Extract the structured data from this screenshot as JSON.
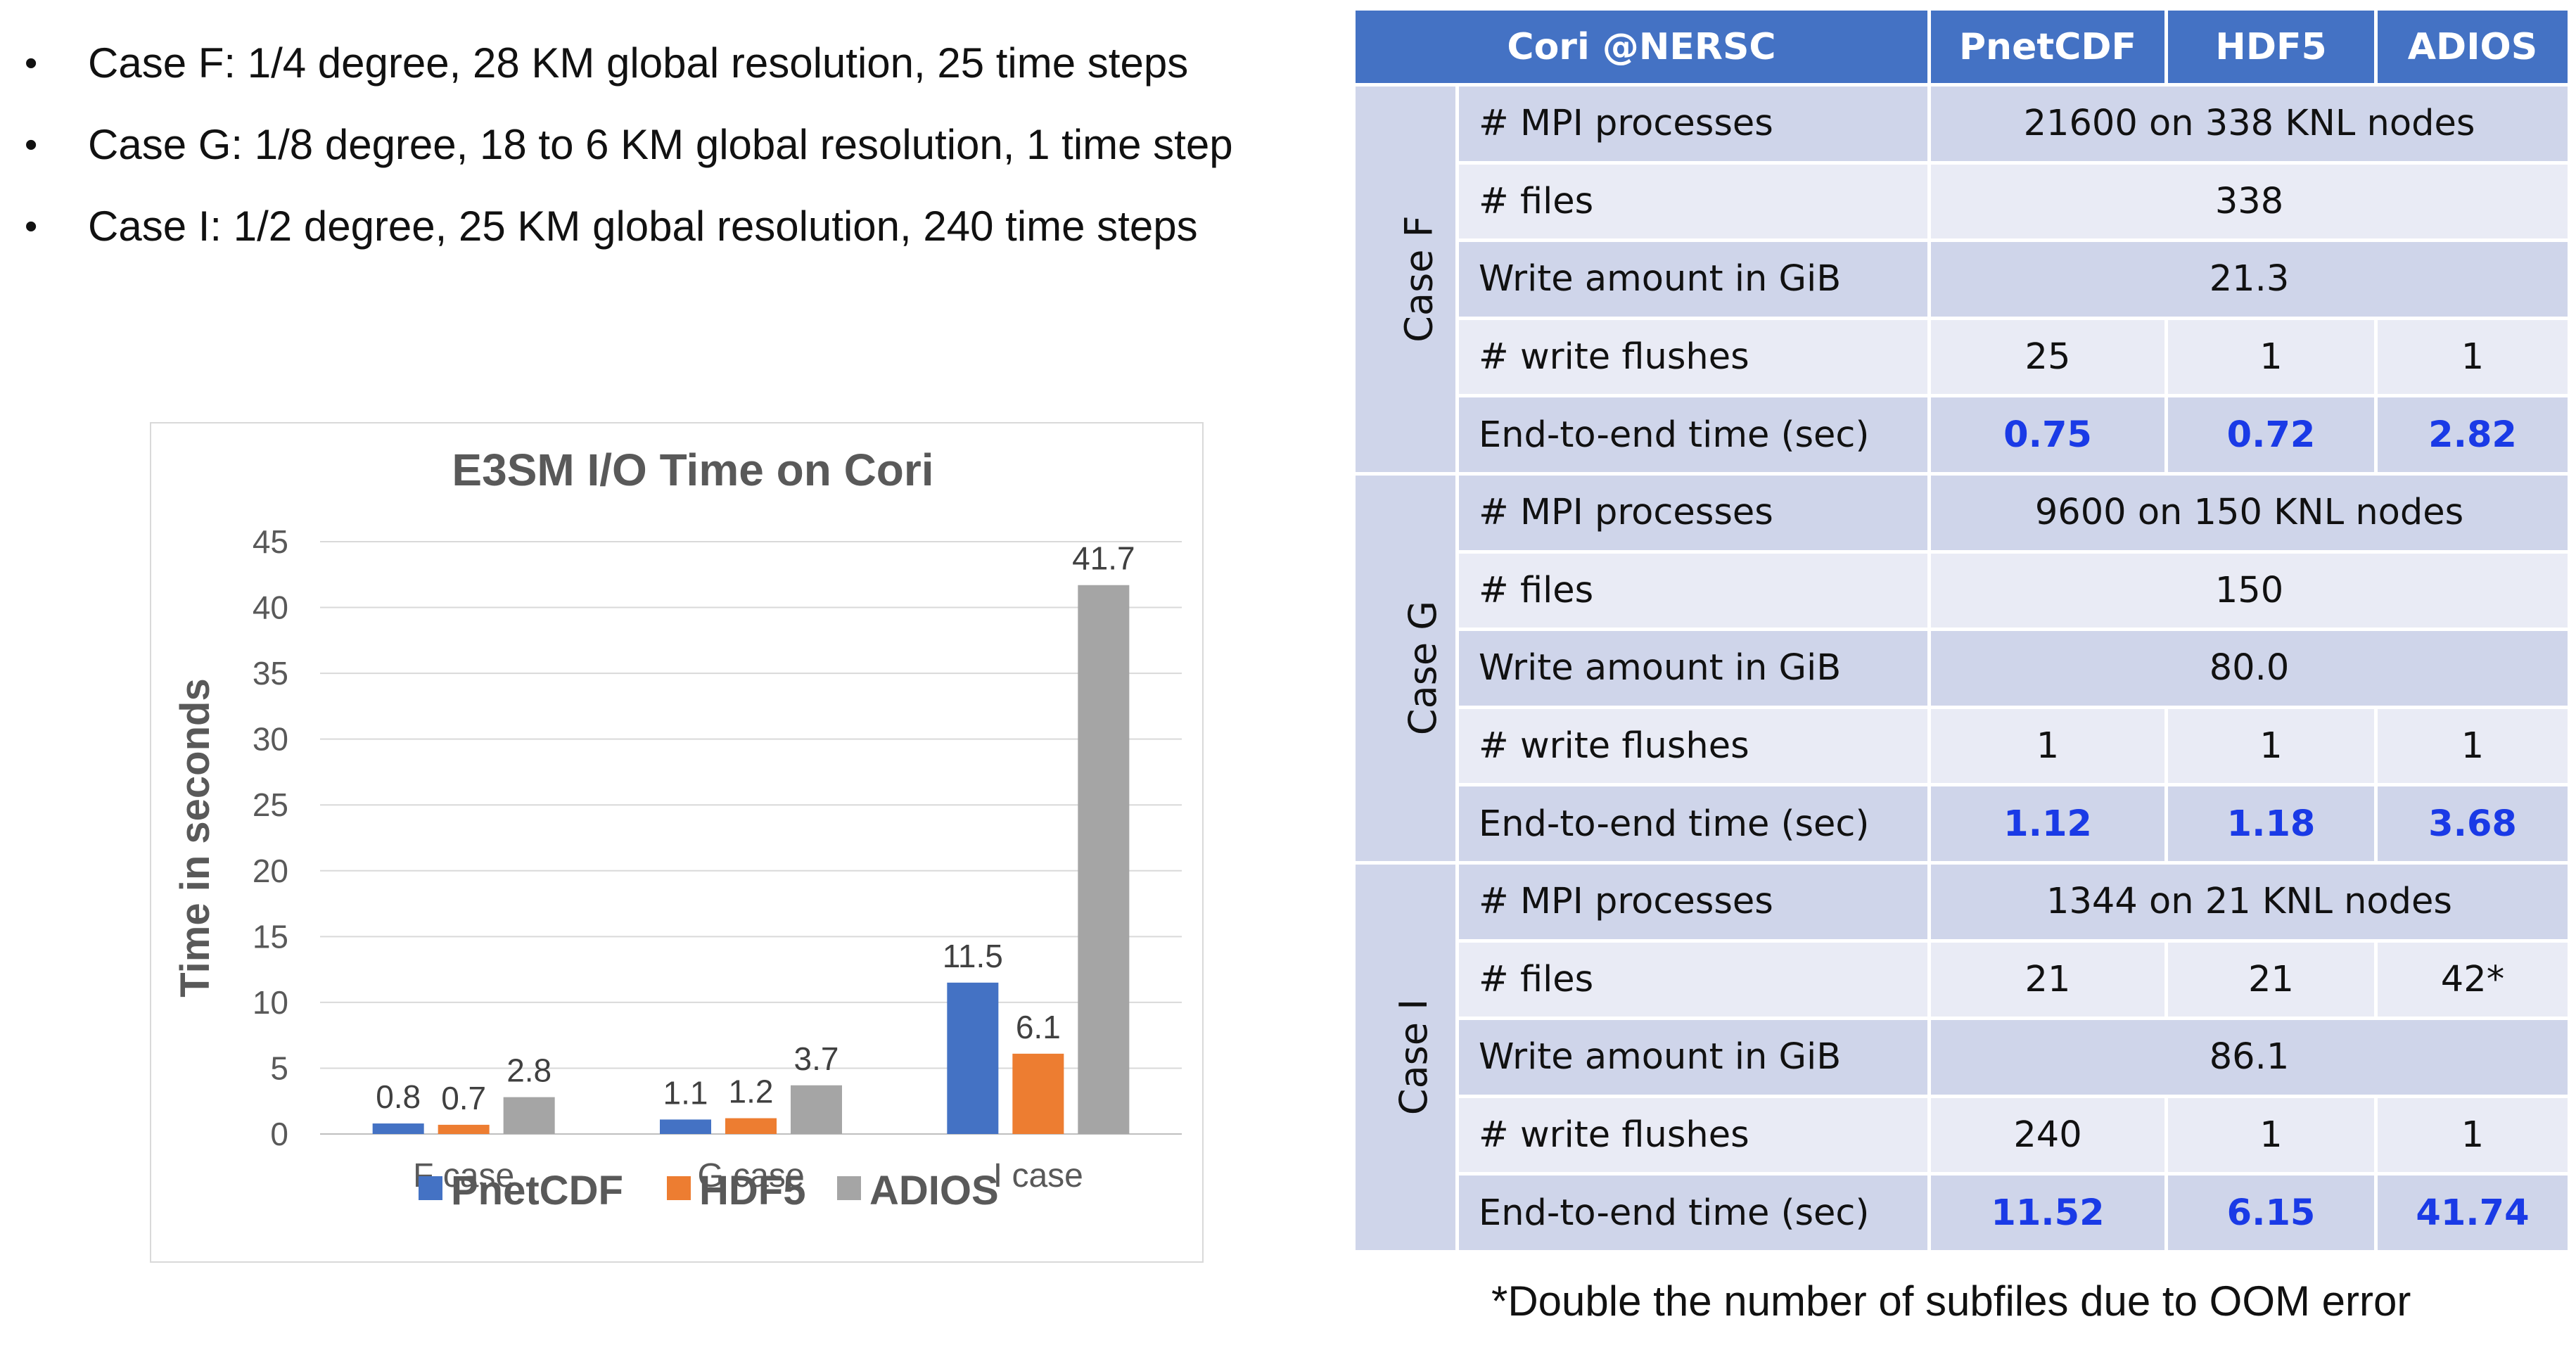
{
  "bullets": [
    "Case F: 1/4 degree, 28 KM global resolution, 25 time steps",
    "Case G:  1/8 degree, 18 to 6 KM global resolution, 1 time step",
    "Case I: 1/2 degree, 25 KM global resolution, 240 time steps"
  ],
  "chart_data": {
    "type": "bar",
    "title": "E3SM I/O  Time on Cori",
    "xlabel": "",
    "ylabel": "Time in seconds",
    "categories": [
      "F case",
      "G case",
      "I case"
    ],
    "ylim": [
      0,
      45
    ],
    "yticks": [
      0,
      5,
      10,
      15,
      20,
      25,
      30,
      35,
      40,
      45
    ],
    "grid": true,
    "legend_position": "bottom",
    "series": [
      {
        "name": "PnetCDF",
        "color": "#4472C4",
        "values": [
          0.8,
          1.1,
          11.5
        ],
        "labels": [
          "0.8",
          "1.1",
          "11.5"
        ]
      },
      {
        "name": "HDF5",
        "color": "#ED7D31",
        "values": [
          0.7,
          1.2,
          6.1
        ],
        "labels": [
          "0.7",
          "1.2",
          "6.1"
        ]
      },
      {
        "name": "ADIOS",
        "color": "#A5A5A5",
        "values": [
          2.8,
          3.7,
          41.7
        ],
        "labels": [
          "2.8",
          "3.7",
          "41.7"
        ]
      }
    ]
  },
  "table": {
    "header": [
      "Cori @NERSC",
      "PnetCDF",
      "HDF5",
      "ADIOS"
    ],
    "header_color": "#4472C4",
    "time_value_color": "#1a3ae6",
    "cases": [
      {
        "label": "Case F",
        "rows": [
          {
            "metric": "# MPI processes",
            "merged": "21600 on 338 KNL nodes"
          },
          {
            "metric": "# files",
            "merged": "338"
          },
          {
            "metric": "Write amount in GiB",
            "merged": "21.3"
          },
          {
            "metric": "# write flushes",
            "values": [
              "25",
              "1",
              "1"
            ]
          },
          {
            "metric": "End-to-end time (sec)",
            "values": [
              "0.75",
              "0.72",
              "2.82"
            ],
            "highlight": true
          }
        ]
      },
      {
        "label": "Case G",
        "rows": [
          {
            "metric": "# MPI processes",
            "merged": "9600 on 150 KNL nodes"
          },
          {
            "metric": "# files",
            "merged": "150"
          },
          {
            "metric": "Write amount in GiB",
            "merged": "80.0"
          },
          {
            "metric": "# write flushes",
            "values": [
              "1",
              "1",
              "1"
            ]
          },
          {
            "metric": "End-to-end time (sec)",
            "values": [
              "1.12",
              "1.18",
              "3.68"
            ],
            "highlight": true
          }
        ]
      },
      {
        "label": "Case I",
        "rows": [
          {
            "metric": "# MPI processes",
            "merged": "1344 on 21 KNL nodes"
          },
          {
            "metric": "# files",
            "values": [
              "21",
              "21",
              "42*"
            ]
          },
          {
            "metric": "Write amount in GiB",
            "merged": "86.1"
          },
          {
            "metric": "# write flushes",
            "values": [
              "240",
              "1",
              "1"
            ]
          },
          {
            "metric": "End-to-end time (sec)",
            "values": [
              "11.52",
              "6.15",
              "41.74"
            ],
            "highlight": true
          }
        ]
      }
    ]
  },
  "footnote": "*Double the number of subfiles due to OOM error"
}
